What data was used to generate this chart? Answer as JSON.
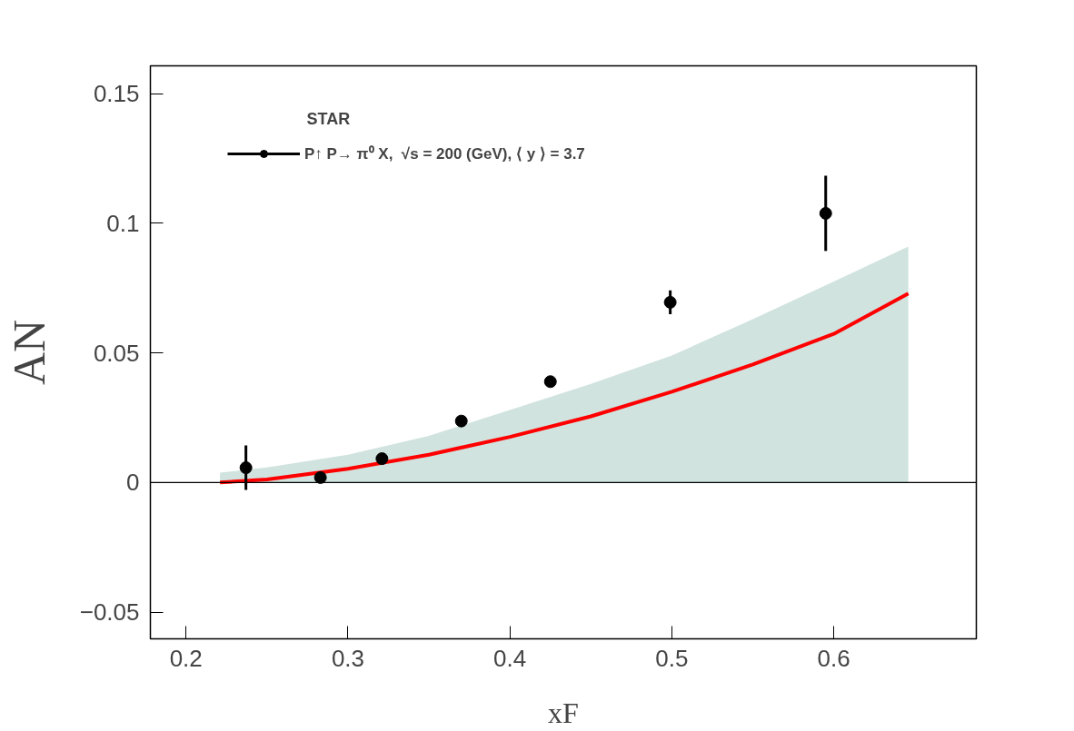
{
  "chart_data": {
    "type": "scatter",
    "xlabel": "xF",
    "ylabel": "AN",
    "xlim": [
      0.178,
      0.688
    ],
    "ylim": [
      -0.0603,
      0.1607
    ],
    "xticks": [
      0.2,
      0.3,
      0.4,
      0.5,
      0.6
    ],
    "yticks": [
      {
        "value": -0.05,
        "label": "−0.05"
      },
      0,
      0.05,
      0.1,
      0.15
    ],
    "grid": false,
    "legend": "top left",
    "annotations": [
      "STAR"
    ],
    "ref_lines": [
      {
        "axis": "y",
        "value": 0,
        "color": "#000000"
      }
    ],
    "series": [
      {
        "type": "area",
        "color": "#d0e3df",
        "x": [
          0.221,
          0.25,
          0.3,
          0.35,
          0.4,
          0.45,
          0.5,
          0.55,
          0.6,
          0.646
        ],
        "values": [
          0.0038,
          0.0058,
          0.0107,
          0.018,
          0.028,
          0.038,
          0.049,
          0.063,
          0.0775,
          0.091
        ]
      },
      {
        "type": "line",
        "color": "#ff0000",
        "marker": "none",
        "x": [
          0.221,
          0.25,
          0.3,
          0.35,
          0.4,
          0.45,
          0.5,
          0.55,
          0.6,
          0.646
        ],
        "values": [
          0.0,
          0.0012,
          0.0053,
          0.0107,
          0.0176,
          0.0255,
          0.035,
          0.0455,
          0.0573,
          0.0729
        ]
      },
      {
        "name": "P↑ P→ π⁰ X,  √s = 200 (GeV), ⟨ y ⟩ = 3.7",
        "color": "#000000",
        "marker": "circle",
        "x": [
          0.237,
          0.283,
          0.321,
          0.37,
          0.425,
          0.499,
          0.595
        ],
        "values": [
          0.0057,
          0.0019,
          0.0092,
          0.0237,
          0.0389,
          0.0695,
          0.1038
        ],
        "errors": [
          0.0086,
          null,
          null,
          null,
          null,
          0.0046,
          0.0145
        ]
      }
    ]
  }
}
